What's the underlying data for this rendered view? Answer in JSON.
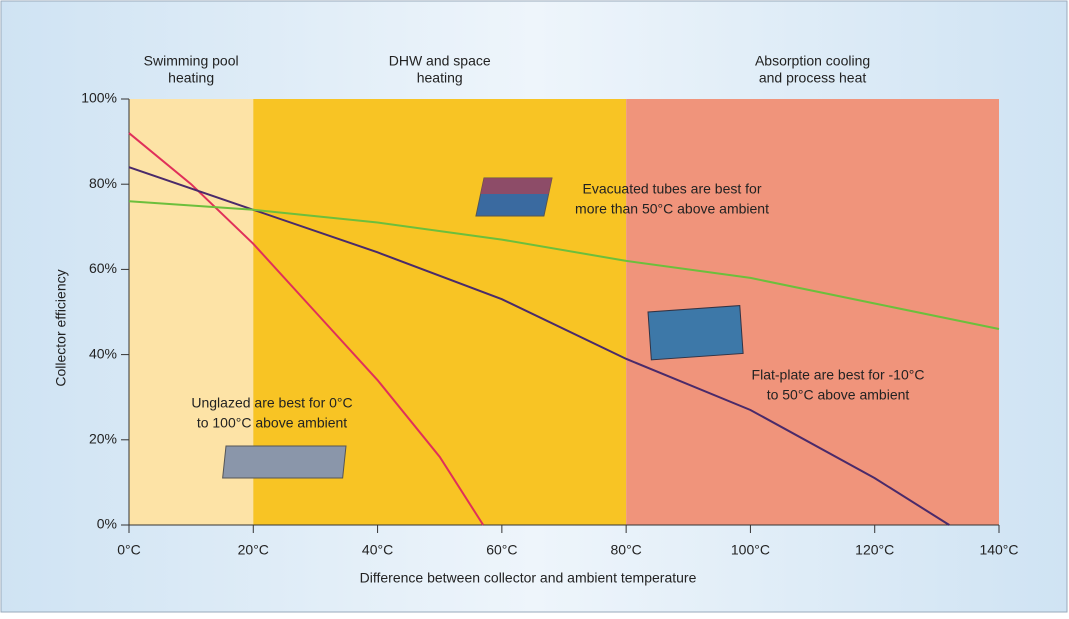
{
  "chart_data": {
    "type": "line",
    "xlabel": "Difference between collector and ambient temperature",
    "ylabel": "Collector efficiency",
    "xlim": [
      0,
      140
    ],
    "ylim": [
      0,
      100
    ],
    "xticks": [
      {
        "value": 0,
        "label": "0°C"
      },
      {
        "value": 20,
        "label": "20°C"
      },
      {
        "value": 40,
        "label": "40°C"
      },
      {
        "value": 60,
        "label": "60°C"
      },
      {
        "value": 80,
        "label": "80°C"
      },
      {
        "value": 100,
        "label": "100°C"
      },
      {
        "value": 120,
        "label": "120°C"
      },
      {
        "value": 140,
        "label": "140°C"
      }
    ],
    "yticks": [
      {
        "value": 0,
        "label": "0%"
      },
      {
        "value": 20,
        "label": "20%"
      },
      {
        "value": 40,
        "label": "40%"
      },
      {
        "value": 60,
        "label": "60%"
      },
      {
        "value": 80,
        "label": "80%"
      },
      {
        "value": 100,
        "label": "100%"
      }
    ],
    "bands": [
      {
        "from": 0,
        "to": 20,
        "color": "#fde3a6",
        "label": [
          "Swimming pool",
          "heating"
        ]
      },
      {
        "from": 20,
        "to": 80,
        "color": "#f8c424",
        "label": [
          "DHW and space",
          "heating"
        ]
      },
      {
        "from": 80,
        "to": 140,
        "color": "#f0947b",
        "label": [
          "Absorption cooling",
          "and process heat"
        ]
      }
    ],
    "series": [
      {
        "color": "#e0305a",
        "x": [
          0,
          10,
          20,
          30,
          40,
          50,
          57
        ],
        "values": [
          92,
          80,
          66,
          50,
          34,
          16,
          0
        ]
      },
      {
        "color": "#4a2a6a",
        "x": [
          0,
          20,
          40,
          60,
          80,
          100,
          120,
          132
        ],
        "values": [
          84,
          74,
          64,
          53,
          39,
          27,
          11,
          0
        ]
      },
      {
        "color": "#6cbf3c",
        "x": [
          0,
          20,
          40,
          60,
          80,
          100,
          120,
          140
        ],
        "values": [
          76,
          74,
          71,
          67,
          62,
          58,
          52,
          46
        ]
      }
    ],
    "annotations": [
      [
        "Evacuated tubes are best for",
        "more than 50°C above ambient"
      ],
      [
        "Flat-plate are best for -10°C",
        "to 50°C above ambient"
      ],
      [
        "Unglazed are best for 0°C",
        "to 100°C above ambient"
      ]
    ]
  }
}
